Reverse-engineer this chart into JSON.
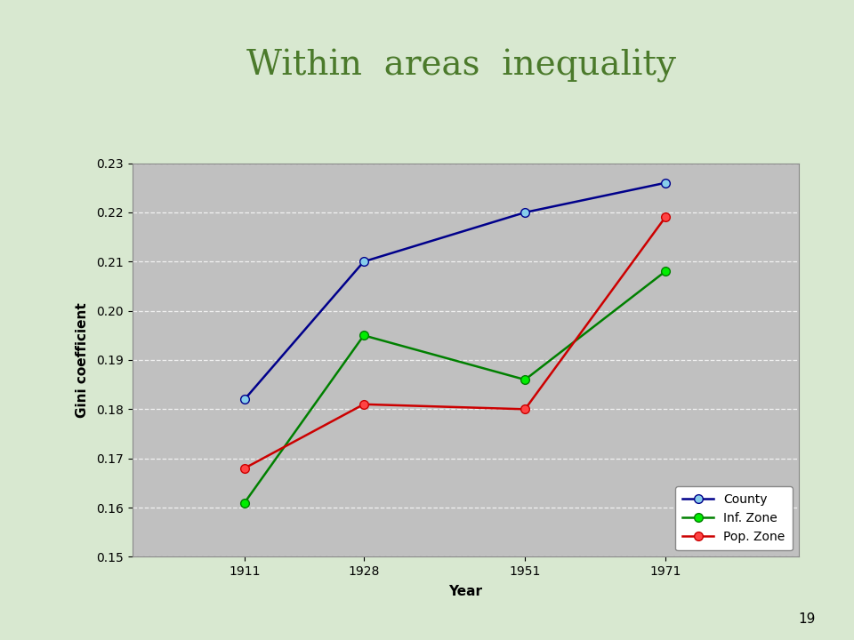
{
  "title": "Within  areas  inequality",
  "xlabel": "Year",
  "ylabel": "Gini coefficient",
  "years": [
    1911,
    1928,
    1951,
    1971
  ],
  "county": [
    0.182,
    0.21,
    0.22,
    0.226
  ],
  "inf_zone": [
    0.161,
    0.195,
    0.186,
    0.208
  ],
  "pop_zone": [
    0.168,
    0.181,
    0.18,
    0.219
  ],
  "county_color": "#00008B",
  "inf_zone_color": "#008000",
  "pop_zone_color": "#CC0000",
  "county_marker_color": "#87CEEB",
  "inf_zone_marker_color": "#00EE00",
  "pop_zone_marker_color": "#FF4444",
  "ylim": [
    0.15,
    0.23
  ],
  "yticks": [
    0.15,
    0.16,
    0.17,
    0.18,
    0.19,
    0.2,
    0.21,
    0.22,
    0.23
  ],
  "plot_bg_color": "#C0C0C0",
  "title_color": "#4B7A2B",
  "title_fontsize": 28,
  "axis_label_fontsize": 11,
  "tick_fontsize": 10,
  "legend_labels": [
    "County",
    "Inf. Zone",
    "Pop. Zone"
  ],
  "slide_bg_color": "#D8E8D0",
  "stripe_green": "#7EC820",
  "stripe_dark_green": "#4A7A10",
  "title_underline_color": "#8B0000",
  "top_green_bar_color": "#6AAE1A"
}
